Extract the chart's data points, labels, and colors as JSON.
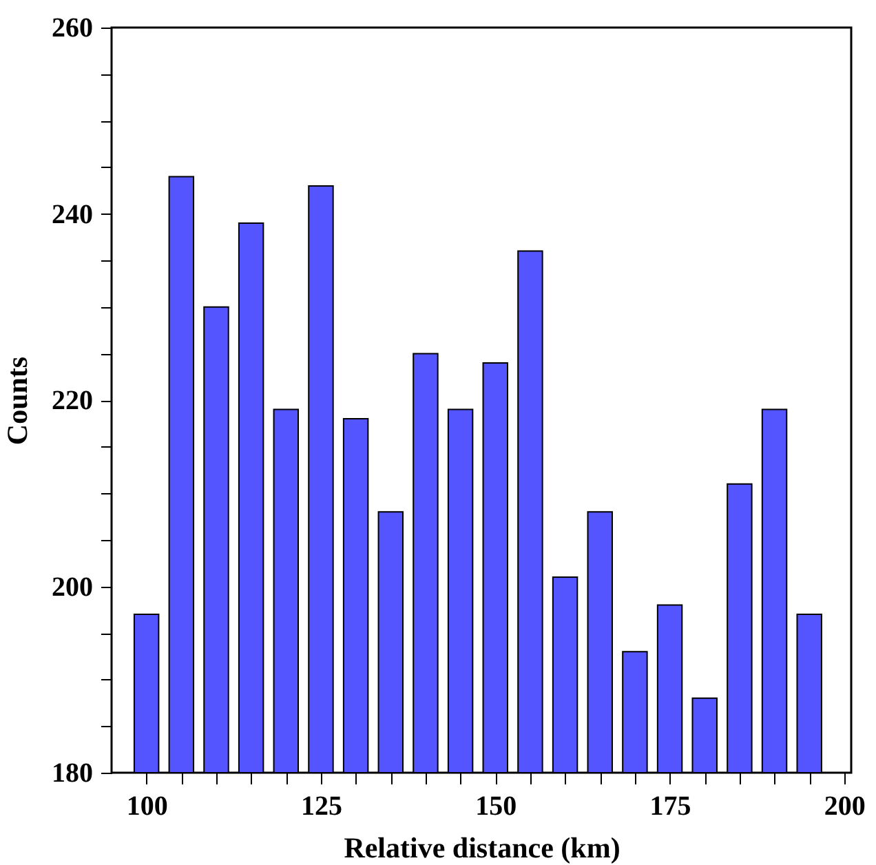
{
  "chart_data": {
    "type": "bar",
    "xlabel": "Relative distance (km)",
    "ylabel": "Counts",
    "x": [
      100,
      105,
      110,
      115,
      120,
      125,
      130,
      135,
      140,
      145,
      150,
      155,
      160,
      165,
      170,
      175,
      180,
      185,
      190,
      195
    ],
    "values": [
      197,
      244,
      230,
      239,
      219,
      243,
      218,
      208,
      225,
      219,
      224,
      236,
      201,
      208,
      193,
      198,
      188,
      211,
      219,
      197
    ],
    "color": "#5555ff",
    "xlim": [
      95,
      201
    ],
    "xticks": [
      100,
      {
        "value": 105,
        "label": null
      },
      {
        "value": 110,
        "label": null
      },
      {
        "value": 115,
        "label": null
      },
      {
        "value": 120,
        "label": null
      },
      125,
      {
        "value": 130,
        "label": null
      },
      {
        "value": 135,
        "label": null
      },
      {
        "value": 140,
        "label": null
      },
      {
        "value": 145,
        "label": null
      },
      150,
      {
        "value": 155,
        "label": null
      },
      {
        "value": 160,
        "label": null
      },
      {
        "value": 165,
        "label": null
      },
      {
        "value": 170,
        "label": null
      },
      175,
      {
        "value": 180,
        "label": null
      },
      {
        "value": 185,
        "label": null
      },
      {
        "value": 190,
        "label": null
      },
      {
        "value": 195,
        "label": null
      },
      200
    ],
    "ylim": [
      180,
      260
    ],
    "yticks": [
      180,
      {
        "value": 185,
        "label": null
      },
      {
        "value": 190,
        "label": null
      },
      {
        "value": 195,
        "label": null
      },
      200,
      {
        "value": 205,
        "label": null
      },
      {
        "value": 210,
        "label": null
      },
      {
        "value": 215,
        "label": null
      },
      220,
      {
        "value": 225,
        "label": null
      },
      {
        "value": 230,
        "label": null
      },
      {
        "value": 235,
        "label": null
      },
      240,
      {
        "value": 245,
        "label": null
      },
      {
        "value": 250,
        "label": null
      },
      {
        "value": 255,
        "label": null
      },
      260
    ],
    "grid": false
  }
}
